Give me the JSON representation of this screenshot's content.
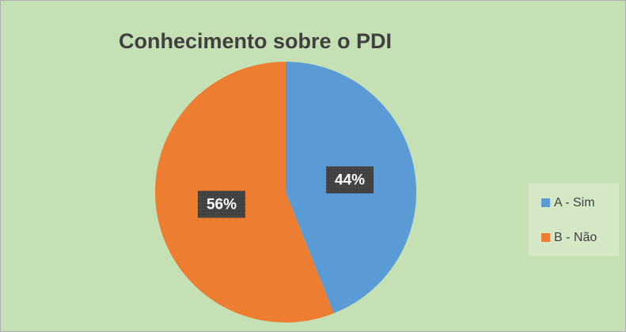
{
  "chart_data": {
    "type": "pie",
    "title": "Conhecimento sobre o PDI",
    "categories": [
      "A - Sim",
      "B - Não"
    ],
    "values": [
      44,
      56
    ],
    "value_labels": [
      "44%",
      "56%"
    ],
    "colors": [
      "#5b9bd5",
      "#ed7d31"
    ],
    "legend": "right"
  }
}
